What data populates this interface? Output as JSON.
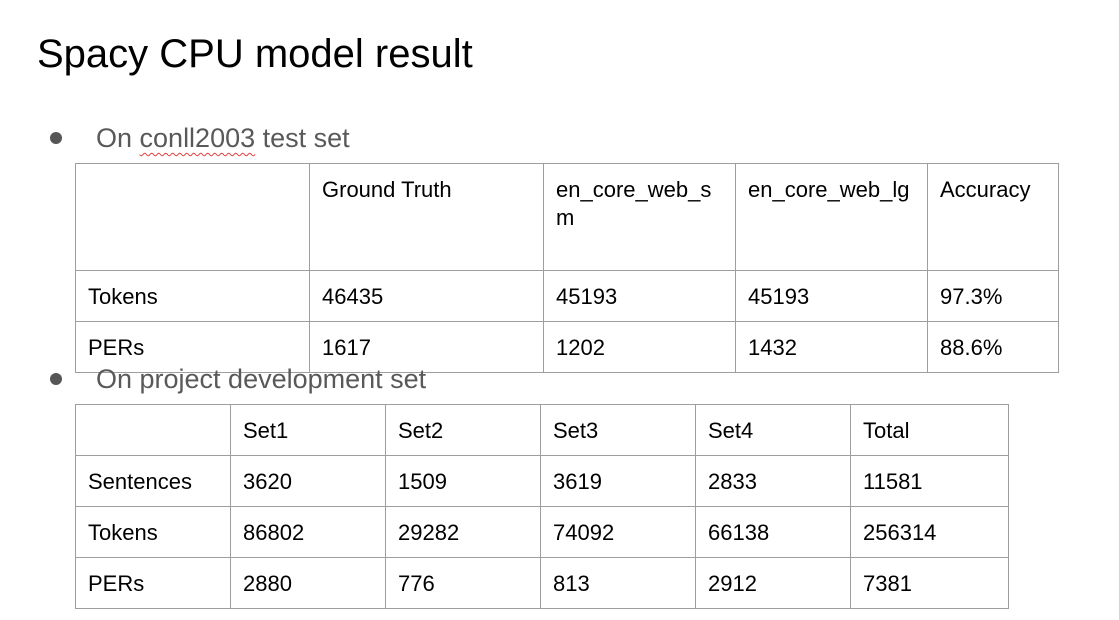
{
  "title": "Spacy CPU model result",
  "bullets": {
    "first": {
      "prefix": "On ",
      "misspelled": "conll2003",
      "suffix": " test set"
    },
    "second": {
      "text": "On project development set"
    }
  },
  "table1": {
    "headers": [
      "",
      "Ground Truth",
      "en_core_web_sm",
      "en_core_web_lg",
      "Accuracy"
    ],
    "rows": [
      [
        "Tokens",
        "46435",
        "45193",
        "45193",
        "97.3%"
      ],
      [
        "PERs",
        "1617",
        "1202",
        "1432",
        "88.6%"
      ]
    ]
  },
  "table2": {
    "headers": [
      "",
      "Set1",
      "Set2",
      "Set3",
      "Set4",
      "Total"
    ],
    "rows": [
      [
        "Sentences",
        "3620",
        "1509",
        "3619",
        "2833",
        "11581"
      ],
      [
        "Tokens",
        "86802",
        "29282",
        "74092",
        "66138",
        "256314"
      ],
      [
        "PERs",
        "2880",
        "776",
        "813",
        "2912",
        "7381"
      ]
    ]
  },
  "colors": {
    "text": "#000000",
    "bullet_text": "#595959",
    "table_border": "#9e9e9e",
    "spellcheck_underline": "#e04040"
  }
}
